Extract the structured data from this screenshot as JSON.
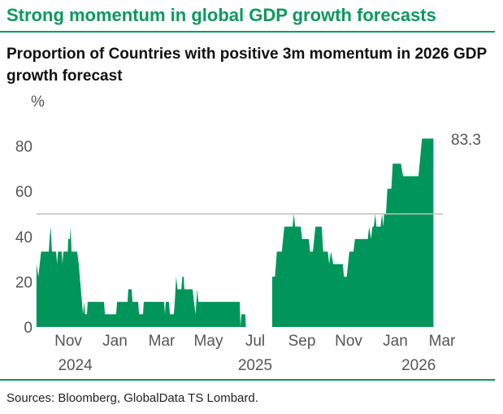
{
  "header": {
    "title": "Strong momentum in global GDP growth forecasts",
    "subtitle": "Proportion of Countries with positive 3m momentum in 2026 GDP growth forecast"
  },
  "footer": {
    "source": "Sources: Bloomberg, GlobalData TS Lombard."
  },
  "colors": {
    "accent": "#0a9a5c",
    "fill": "#00955a",
    "reference_line": "#bdbdbd"
  },
  "chart_data": {
    "type": "area",
    "title": "Proportion of Countries with positive 3m momentum in 2026 GDP growth forecast",
    "ylabel": "%",
    "xlabel": "",
    "x_unit": "months since Jan 2024 (10 = Nov 2024)",
    "ylim": [
      0,
      90
    ],
    "yticks": [
      0,
      20,
      40,
      60,
      80
    ],
    "xticks": [
      {
        "x": 10,
        "label": "Nov"
      },
      {
        "x": 12,
        "label": "Jan"
      },
      {
        "x": 14,
        "label": "Mar"
      },
      {
        "x": 16,
        "label": "May"
      },
      {
        "x": 18,
        "label": "Jul"
      },
      {
        "x": 20,
        "label": "Sep"
      },
      {
        "x": 22,
        "label": "Nov"
      },
      {
        "x": 24,
        "label": "Jan"
      },
      {
        "x": 26,
        "label": "Mar"
      }
    ],
    "year_labels": [
      {
        "x": 10.3,
        "label": "2024"
      },
      {
        "x": 18,
        "label": "2025"
      },
      {
        "x": 25,
        "label": "2026"
      }
    ],
    "reference_line": 50,
    "last_value_label": "83.3",
    "grid": false,
    "series": [
      {
        "name": "segment-1",
        "points": [
          [
            8.64,
            0
          ],
          [
            8.64,
            27.8
          ],
          [
            8.72,
            22.2
          ],
          [
            8.84,
            33.3
          ],
          [
            9.17,
            33.3
          ],
          [
            9.2,
            38.9
          ],
          [
            9.25,
            44.4
          ],
          [
            9.3,
            33.3
          ],
          [
            9.48,
            33.3
          ],
          [
            9.52,
            27.8
          ],
          [
            9.56,
            33.3
          ],
          [
            9.72,
            33.3
          ],
          [
            9.75,
            27.8
          ],
          [
            9.79,
            33.3
          ],
          [
            9.98,
            33.3
          ],
          [
            10.0,
            38.9
          ],
          [
            10.07,
            38.9
          ],
          [
            10.1,
            44.4
          ],
          [
            10.14,
            33.3
          ],
          [
            10.38,
            33.3
          ],
          [
            10.45,
            27.8
          ],
          [
            10.63,
            5.6
          ],
          [
            10.68,
            11.1
          ],
          [
            10.72,
            5.6
          ],
          [
            10.8,
            5.6
          ],
          [
            10.83,
            11.1
          ],
          [
            11.53,
            11.1
          ],
          [
            11.57,
            5.6
          ],
          [
            12.05,
            5.6
          ],
          [
            12.09,
            11.1
          ],
          [
            12.54,
            11.1
          ],
          [
            12.57,
            16.7
          ],
          [
            12.71,
            16.7
          ],
          [
            12.75,
            11.1
          ],
          [
            12.99,
            11.1
          ],
          [
            13.03,
            5.6
          ],
          [
            13.2,
            5.6
          ],
          [
            13.23,
            11.1
          ],
          [
            14.1,
            11.1
          ],
          [
            14.14,
            5.6
          ],
          [
            14.17,
            11.1
          ],
          [
            14.31,
            11.1
          ],
          [
            14.35,
            5.6
          ],
          [
            14.52,
            5.6
          ],
          [
            14.56,
            11.1
          ],
          [
            14.62,
            22.2
          ],
          [
            14.68,
            16.7
          ],
          [
            14.84,
            16.7
          ],
          [
            14.88,
            22.2
          ],
          [
            14.94,
            22.2
          ],
          [
            14.97,
            16.7
          ],
          [
            15.32,
            16.7
          ],
          [
            15.38,
            11.1
          ],
          [
            15.45,
            5.6
          ],
          [
            15.52,
            16.7
          ],
          [
            15.57,
            11.1
          ],
          [
            17.34,
            11.1
          ],
          [
            17.37,
            0
          ],
          [
            17.41,
            5.6
          ],
          [
            17.58,
            5.6
          ],
          [
            17.6,
            0
          ]
        ]
      },
      {
        "name": "segment-2",
        "points": [
          [
            18.73,
            0
          ],
          [
            18.73,
            22.2
          ],
          [
            18.85,
            22.2
          ],
          [
            18.93,
            33.3
          ],
          [
            19.14,
            33.3
          ],
          [
            19.25,
            44.4
          ],
          [
            19.6,
            44.4
          ],
          [
            19.66,
            50
          ],
          [
            19.71,
            44.4
          ],
          [
            19.95,
            44.4
          ],
          [
            20.01,
            38.9
          ],
          [
            20.3,
            38.9
          ],
          [
            20.35,
            33.3
          ],
          [
            20.47,
            33.3
          ],
          [
            20.58,
            44.4
          ],
          [
            20.85,
            44.4
          ],
          [
            20.91,
            33.3
          ],
          [
            21.11,
            33.3
          ],
          [
            21.17,
            27.8
          ],
          [
            21.25,
            33.3
          ],
          [
            21.34,
            27.8
          ],
          [
            21.75,
            27.8
          ],
          [
            21.8,
            22.2
          ],
          [
            21.92,
            22.2
          ],
          [
            22.03,
            33.3
          ],
          [
            22.21,
            33.3
          ],
          [
            22.27,
            38.9
          ],
          [
            22.82,
            38.9
          ],
          [
            22.88,
            44.4
          ],
          [
            22.96,
            38.9
          ],
          [
            23.02,
            44.4
          ],
          [
            23.08,
            44.4
          ],
          [
            23.14,
            50
          ],
          [
            23.19,
            44.4
          ],
          [
            23.37,
            44.4
          ],
          [
            23.43,
            50
          ],
          [
            23.49,
            44.4
          ],
          [
            23.52,
            50
          ],
          [
            23.6,
            50
          ],
          [
            23.66,
            61.1
          ],
          [
            23.83,
            61.1
          ],
          [
            23.89,
            72.2
          ],
          [
            24.24,
            72.2
          ],
          [
            24.33,
            66.7
          ],
          [
            24.99,
            66.7
          ],
          [
            25.14,
            83.3
          ],
          [
            25.63,
            83.3
          ],
          [
            25.63,
            0
          ]
        ]
      }
    ]
  }
}
